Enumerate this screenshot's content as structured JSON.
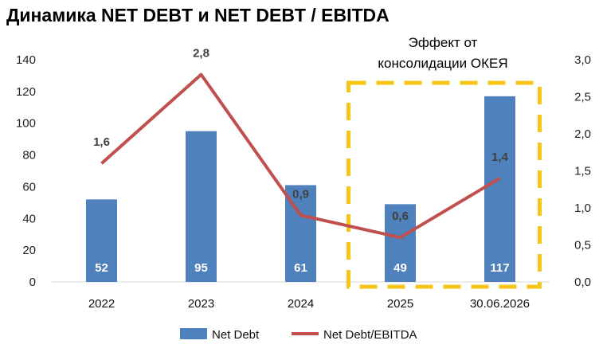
{
  "title": "Динамика NET DEBT и NET DEBT / EBITDA",
  "annotation": [
    "Эффект от",
    "консолидации ОКЕЯ"
  ],
  "colors": {
    "bar": "#4f81bd",
    "line": "#c0504d",
    "highlight": "#f5c518"
  },
  "chart_data": {
    "type": "bar",
    "categories": [
      "2022",
      "2023",
      "2024",
      "2025",
      "30.06.2026"
    ],
    "series": [
      {
        "name": "Net Debt",
        "type": "bar",
        "axis": "left",
        "values": [
          52,
          95,
          61,
          49,
          117
        ],
        "labels": [
          "52",
          "95",
          "61",
          "49",
          "117"
        ]
      },
      {
        "name": "Net Debt/EBITDA",
        "type": "line",
        "axis": "right",
        "values": [
          1.6,
          2.8,
          0.9,
          0.6,
          1.4
        ],
        "labels": [
          "1,6",
          "2,8",
          "0,9",
          "0,6",
          "1,4"
        ]
      }
    ],
    "ylim_left": [
      0,
      140
    ],
    "yticks_left": [
      "0",
      "20",
      "40",
      "60",
      "80",
      "100",
      "120",
      "140"
    ],
    "ylim_right": [
      0,
      3.0
    ],
    "yticks_right": [
      "0,0",
      "0,5",
      "1,0",
      "1,5",
      "2,0",
      "2,5",
      "3,0"
    ],
    "highlighted_categories": [
      "2025",
      "30.06.2026"
    ],
    "grid": false,
    "legend_position": "bottom"
  }
}
